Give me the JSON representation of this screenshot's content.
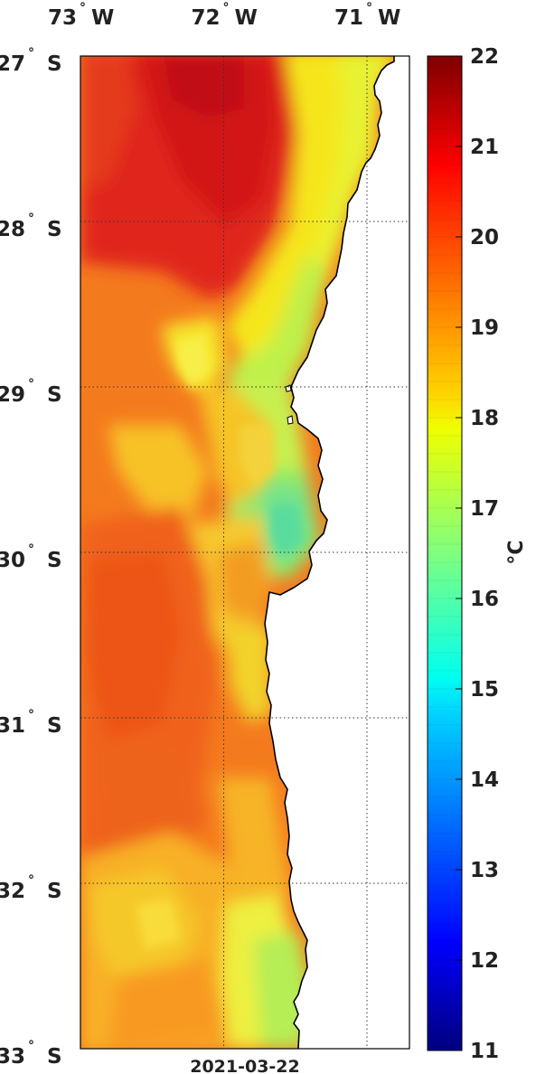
{
  "map": {
    "date_label": "2021-03-22",
    "lon_labels": [
      {
        "deg": "73",
        "dir": "W",
        "lon": -73
      },
      {
        "deg": "72",
        "dir": "W",
        "lon": -72
      },
      {
        "deg": "71",
        "dir": "W",
        "lon": -71
      }
    ],
    "lat_labels": [
      {
        "deg": "27",
        "dir": "S",
        "lat": -27
      },
      {
        "deg": "28",
        "dir": "S",
        "lat": -28
      },
      {
        "deg": "29",
        "dir": "S",
        "lat": -29
      },
      {
        "deg": "30",
        "dir": "S",
        "lat": -30
      },
      {
        "deg": "31",
        "dir": "S",
        "lat": -31
      },
      {
        "deg": "32",
        "dir": "S",
        "lat": -32
      },
      {
        "deg": "33",
        "dir": "S",
        "lat": -33
      }
    ],
    "degree_symbol": "°",
    "colors": {
      "land": "#ffffff",
      "coastline": "#000000",
      "grid": "#333333"
    }
  },
  "colorbar": {
    "unit": "°C",
    "min": 11,
    "max": 22,
    "ticks": [
      "22",
      "21",
      "20",
      "19",
      "18",
      "17",
      "16",
      "15",
      "14",
      "13",
      "12",
      "11"
    ],
    "palette": "jet"
  }
}
